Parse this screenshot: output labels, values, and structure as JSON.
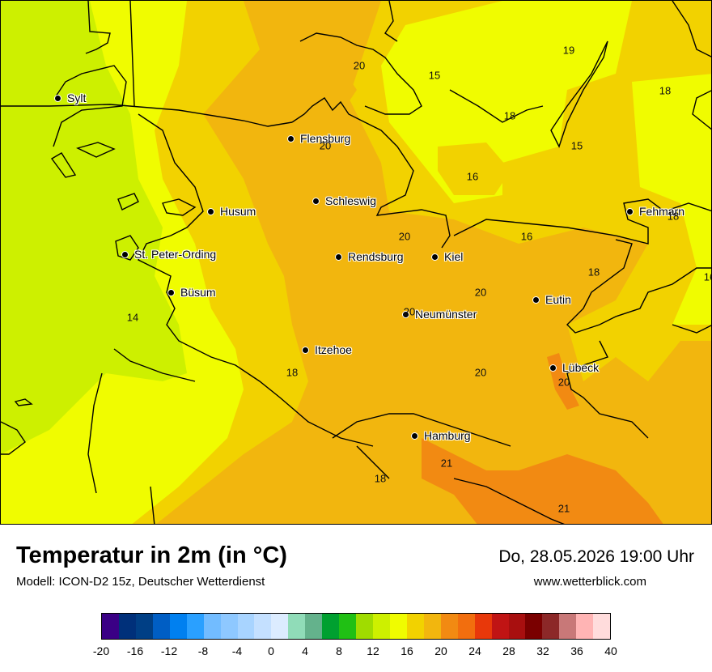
{
  "map": {
    "cities": [
      {
        "name": "Sylt"
      },
      {
        "name": "Flensburg"
      },
      {
        "name": "Schleswig"
      },
      {
        "name": "Husum"
      },
      {
        "name": "St. Peter-Ording"
      },
      {
        "name": "Rendsburg"
      },
      {
        "name": "Kiel"
      },
      {
        "name": "Büsum"
      },
      {
        "name": "Neumünster"
      },
      {
        "name": "Eutin"
      },
      {
        "name": "Itzehoe"
      },
      {
        "name": "Lübeck"
      },
      {
        "name": "Hamburg"
      },
      {
        "name": "Fehmarn"
      }
    ],
    "values": [
      "20",
      "15",
      "19",
      "18",
      "18",
      "15",
      "20",
      "16",
      "20",
      "16",
      "18",
      "18",
      "20",
      "20",
      "14",
      "18",
      "20",
      "20",
      "21",
      "18",
      "21",
      "16"
    ],
    "colors": {
      "green_yellow": "#cdf000",
      "yellow": "#f0fc00",
      "gold": "#f2d200",
      "orange": "#f2b60e",
      "dark_orange": "#f28a12",
      "outline": "#000000"
    }
  },
  "footer": {
    "title": "Temperatur in 2m (in °C)",
    "model": "Modell: ICON-D2 15z, Deutscher Wetterdienst",
    "datetime": "Do, 28.05.2026 19:00 Uhr",
    "website": "www.wetterblick.com"
  },
  "legend": {
    "ticks": [
      "-20",
      "-16",
      "-12",
      "-8",
      "-4",
      "0",
      "4",
      "8",
      "12",
      "16",
      "20",
      "24",
      "28",
      "32",
      "36",
      "40"
    ],
    "colors": [
      "#3a0085",
      "#00307a",
      "#003f85",
      "#005ec4",
      "#0080f0",
      "#2aa0ff",
      "#72bcff",
      "#8ec8ff",
      "#a8d4ff",
      "#c4e0ff",
      "#dcecff",
      "#90dcb8",
      "#64b28c",
      "#00a030",
      "#20c014",
      "#a0dc00",
      "#cdf000",
      "#f0fc00",
      "#f2d200",
      "#f2b60e",
      "#f28a12",
      "#f26e0e",
      "#e8380a",
      "#c01414",
      "#a80f0f",
      "#7a0000",
      "#8c2828",
      "#c87878",
      "#ffb4b4",
      "#ffdcdc"
    ]
  }
}
